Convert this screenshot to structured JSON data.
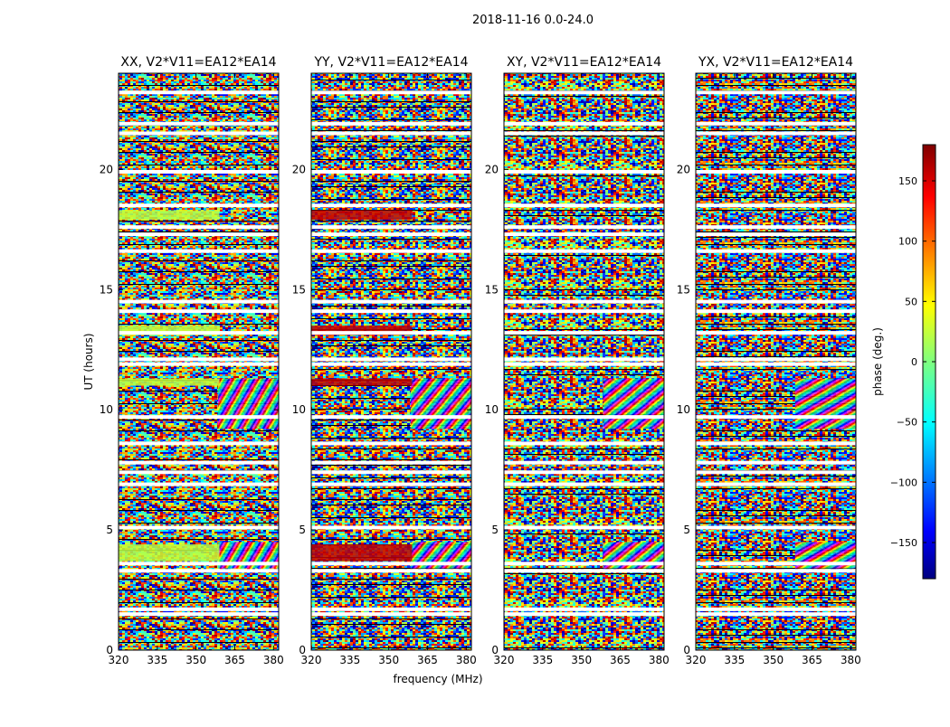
{
  "chart_data": {
    "type": "heatmap",
    "title": "2018-11-16 0.0-24.0",
    "xlabel": "frequency (MHz)",
    "ylabel": "UT (hours)",
    "xlim": [
      320,
      382
    ],
    "ylim": [
      0,
      24
    ],
    "xticks": [
      320,
      335,
      350,
      365,
      380
    ],
    "yticks": [
      0,
      5,
      10,
      15,
      20
    ],
    "panels": [
      {
        "name": "XX, V2*V11=EA12*EA14",
        "solid_color": "#bfff3c"
      },
      {
        "name": "YY, V2*V11=EA12*EA14",
        "solid_color": "#c00000"
      },
      {
        "name": "XY, V2*V11=EA12*EA14",
        "solid_color": null
      },
      {
        "name": "YX, V2*V11=EA12*EA14",
        "solid_color": null
      }
    ],
    "flagged_ut_hours": [
      1.5,
      1.7,
      3.3,
      3.6,
      5.1,
      6.9,
      7.4,
      7.8,
      8.6,
      9.7,
      11.9,
      12.1,
      13.2,
      14.1,
      14.5,
      16.6,
      17.3,
      17.6,
      18.5,
      19.9,
      21.5,
      21.9,
      23.2
    ],
    "colorbar": {
      "label": "phase (deg.)",
      "range": [
        -180,
        180
      ],
      "ticks": [
        -150,
        -100,
        -50,
        0,
        50,
        100,
        150
      ],
      "tick_labels": [
        "−150",
        "−100",
        "−50",
        "0",
        "50",
        "100",
        "150"
      ],
      "colormap": "jet"
    }
  }
}
